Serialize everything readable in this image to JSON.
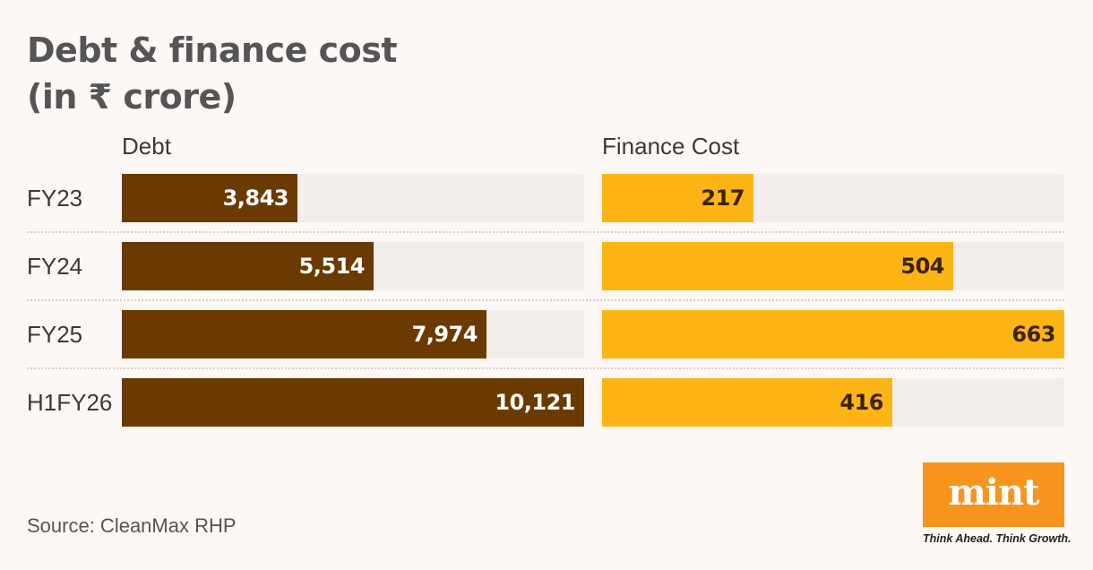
{
  "chart_data": {
    "type": "bar",
    "orientation": "horizontal",
    "title": "Debt & finance cost",
    "title_line2": "(in ₹ crore)",
    "categories": [
      "FY23",
      "FY24",
      "FY25",
      "H1FY26"
    ],
    "series": [
      {
        "name": "Debt",
        "values": [
          3843,
          5514,
          7974,
          10121
        ],
        "labels": [
          "3,843",
          "5,514",
          "7,974",
          "10,121"
        ],
        "color": "#6b3a00",
        "xlim": [
          0,
          10121
        ]
      },
      {
        "name": "Finance Cost",
        "values": [
          217,
          504,
          663,
          416
        ],
        "labels": [
          "217",
          "504",
          "663",
          "416"
        ],
        "color": "#fdb515",
        "xlim": [
          0,
          663
        ]
      }
    ],
    "grid": false,
    "legend": "none"
  },
  "source": "Source: CleanMax RHP",
  "logo": {
    "text": "mint",
    "tagline": "Think Ahead. Think Growth.",
    "color": "#f7941d"
  },
  "colors": {
    "background": "#fdf8f6",
    "track": "#f3eeec"
  }
}
